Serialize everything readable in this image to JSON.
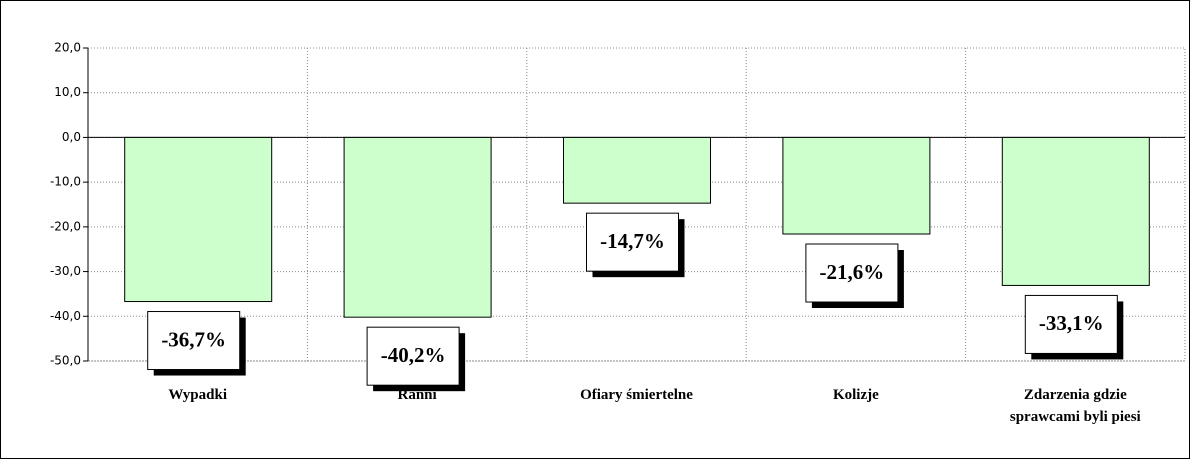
{
  "chart_data": {
    "type": "bar",
    "categories": [
      "Wypadki",
      "Ranni",
      "Ofiary śmiertelne",
      "Kolizje",
      "Zdarzenia gdzie sprawcami byli piesi"
    ],
    "values": [
      -36.7,
      -40.2,
      -14.7,
      -21.6,
      -33.1
    ],
    "value_labels": [
      "-36,7%",
      "-40,2%",
      "-14,7%",
      "-21,6%",
      "-33,1%"
    ],
    "color": "#ccffcc",
    "ylim": [
      -50,
      20
    ],
    "yticks": [
      {
        "value": -50,
        "label": "-50,0"
      },
      {
        "value": -40,
        "label": "-40,0"
      },
      {
        "value": -30,
        "label": "-30,0"
      },
      {
        "value": -20,
        "label": "-20,0"
      },
      {
        "value": -10,
        "label": "-10,0"
      },
      {
        "value": 0,
        "label": "0,0"
      },
      {
        "value": 10,
        "label": "10,0"
      },
      {
        "value": 20,
        "label": "20,0"
      }
    ],
    "grid": true
  }
}
